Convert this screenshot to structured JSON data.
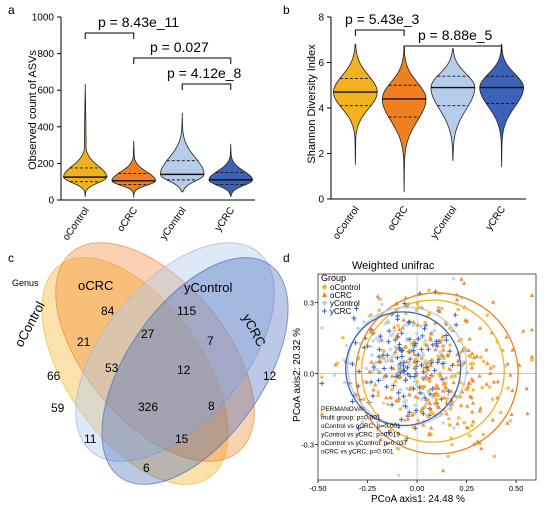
{
  "panels": {
    "a": "a",
    "b": "b",
    "c": "c",
    "d": "d"
  },
  "colors": {
    "oControl": "#f2b21f",
    "oCRC": "#f07f1f",
    "yControl": "#b5cdea",
    "yCRC": "#3c62b7"
  },
  "chart_data": [
    {
      "type": "violin",
      "panel": "a",
      "ylabel": "Observed count of ASVs",
      "categories": [
        "oControl",
        "oCRC",
        "yControl",
        "yCRC"
      ],
      "ylim": [
        0,
        1000
      ],
      "yticks": [
        0,
        200,
        400,
        600,
        800,
        1000
      ],
      "series": [
        {
          "name": "oControl",
          "min": 20,
          "max": 630,
          "q1": 100,
          "median": 125,
          "q3": 175
        },
        {
          "name": "oCRC",
          "min": 15,
          "max": 320,
          "q1": 85,
          "median": 105,
          "q3": 145
        },
        {
          "name": "yControl",
          "min": 45,
          "max": 475,
          "q1": 110,
          "median": 140,
          "q3": 215
        },
        {
          "name": "yCRC",
          "min": 20,
          "max": 305,
          "q1": 85,
          "median": 110,
          "q3": 150
        }
      ],
      "annotations": [
        "p = 8.43e_11",
        "p = 0.027",
        "p = 4.12e_8"
      ]
    },
    {
      "type": "violin",
      "panel": "b",
      "ylabel": "Shannon Diversity Index",
      "categories": [
        "oControl",
        "oCRC",
        "yControl",
        "yCRC"
      ],
      "ylim": [
        0,
        8
      ],
      "yticks": [
        0,
        2,
        4,
        6,
        8
      ],
      "series": [
        {
          "name": "oControl",
          "min": 1.5,
          "max": 6.8,
          "q1": 4.1,
          "median": 4.7,
          "q3": 5.3
        },
        {
          "name": "oCRC",
          "min": 0.3,
          "max": 6.7,
          "q1": 3.6,
          "median": 4.4,
          "q3": 5.0
        },
        {
          "name": "yControl",
          "min": 1.7,
          "max": 6.6,
          "q1": 4.1,
          "median": 4.9,
          "q3": 5.4
        },
        {
          "name": "yCRC",
          "min": 1.4,
          "max": 6.8,
          "q1": 4.2,
          "median": 4.9,
          "q3": 5.4
        }
      ],
      "annotations": [
        "p = 5.43e_3",
        "p = 8.88e_5"
      ]
    },
    {
      "type": "venn",
      "panel": "c",
      "label": "Genus",
      "sets": [
        "oControl",
        "oCRC",
        "yControl",
        "yCRC"
      ],
      "regions": {
        "oControl_only": 66,
        "oCRC_only": 84,
        "yControl_only": 115,
        "yCRC_only": 12,
        "oControl_oCRC": 21,
        "oCRC_yControl": 27,
        "yControl_yCRC": 7,
        "oControl_oCRC_yControl": 53,
        "oCRC_yControl_yCRC": 12,
        "oControl_yControl": 59,
        "all": 326,
        "oCRC_yCRC": 8,
        "oControl_yControl_yCRC": 11,
        "oControl_oCRC_yCRC": 15,
        "oControl_yCRC": 6
      }
    },
    {
      "type": "scatter",
      "panel": "d",
      "title": "Weighted unifrac",
      "xlabel": "PCoA axis1:  24.48 %",
      "ylabel": "PCoA axis2:  20.32 %",
      "xlim": [
        -0.5,
        0.6
      ],
      "ylim": [
        -0.45,
        0.42
      ],
      "xticks": [
        -0.5,
        -0.25,
        0.0,
        0.25,
        0.5
      ],
      "yticks": [
        -0.3,
        0.0,
        0.3
      ],
      "legend": {
        "title": "Group",
        "position": "top-left",
        "entries": [
          "oControl",
          "oCRC",
          "yControl",
          "yCRC"
        ]
      },
      "ellipses": [
        {
          "name": "oControl",
          "cx": 0.08,
          "cy": 0.01,
          "rx": 0.36,
          "ry": 0.3
        },
        {
          "name": "oCRC",
          "cx": 0.1,
          "cy": 0.0,
          "rx": 0.41,
          "ry": 0.34
        },
        {
          "name": "yControl",
          "cx": -0.05,
          "cy": 0.03,
          "rx": 0.3,
          "ry": 0.25
        },
        {
          "name": "yCRC",
          "cx": -0.07,
          "cy": 0.02,
          "rx": 0.29,
          "ry": 0.24
        }
      ],
      "stats": [
        "PERMANOVA:",
        "multi group: p=0.001",
        "oControl vs oCRC: p=0.001",
        "yControl vs yCRC: p=0.019",
        "oControl vs yControl: p=0.037",
        "oCRC vs yCRC: p=0.001"
      ]
    }
  ]
}
